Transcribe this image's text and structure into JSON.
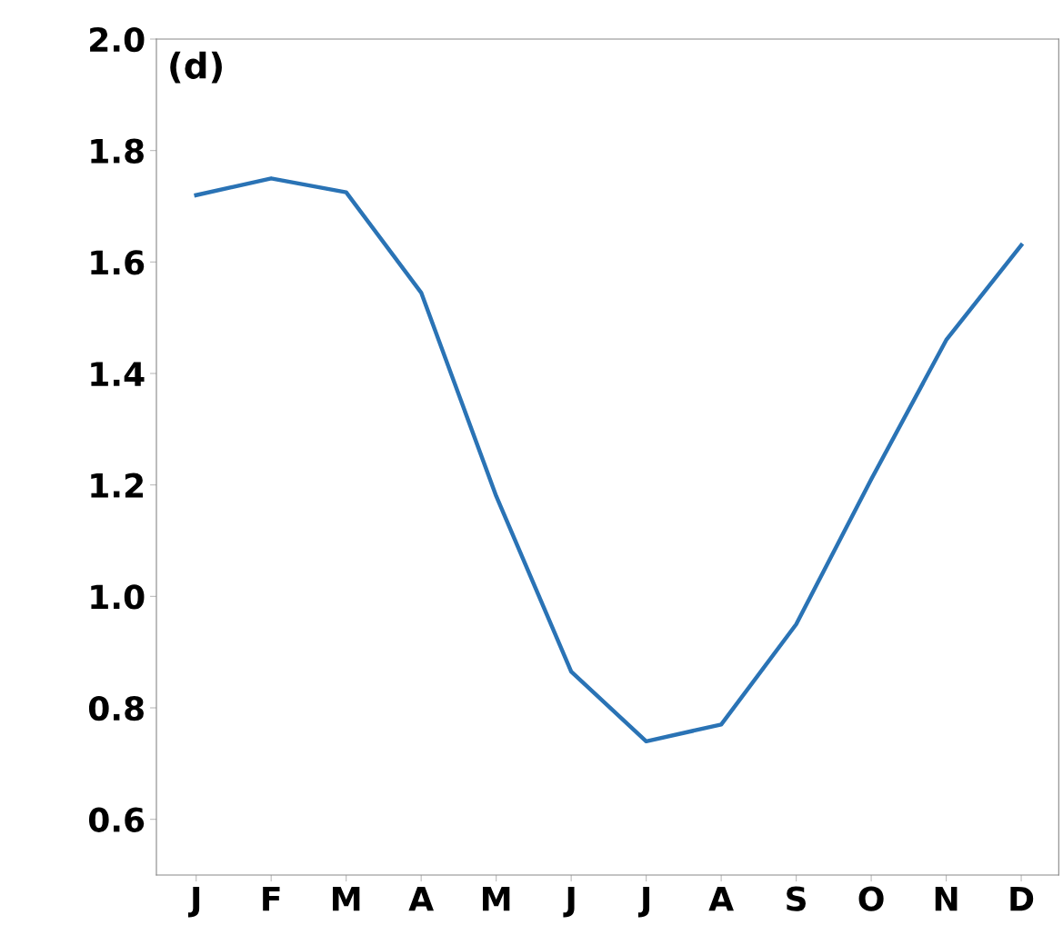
{
  "chart_data": {
    "type": "line",
    "categories": [
      "J",
      "F",
      "M",
      "A",
      "M",
      "J",
      "J",
      "A",
      "S",
      "O",
      "N",
      "D"
    ],
    "series": [
      {
        "color": "#2a73b5",
        "values": [
          1.72,
          1.75,
          1.725,
          1.545,
          1.18,
          0.865,
          0.74,
          0.77,
          0.95,
          1.21,
          1.46,
          1.63
        ]
      }
    ],
    "annotations": [
      "(d)"
    ],
    "ylim": [
      0.5,
      2.0
    ],
    "yticks": [
      {
        "value": 0.6,
        "label": "0.6"
      },
      {
        "value": 0.8,
        "label": "0.8"
      },
      {
        "value": 1.0,
        "label": "1.0"
      },
      {
        "value": 1.2,
        "label": "1.2"
      },
      {
        "value": 1.4,
        "label": "1.4"
      },
      {
        "value": 1.6,
        "label": "1.6"
      },
      {
        "value": 1.8,
        "label": "1.8"
      },
      {
        "value": 2.0,
        "label": "2.0"
      }
    ],
    "grid": false,
    "legend": false,
    "marker": "none",
    "line_style": "solid"
  }
}
